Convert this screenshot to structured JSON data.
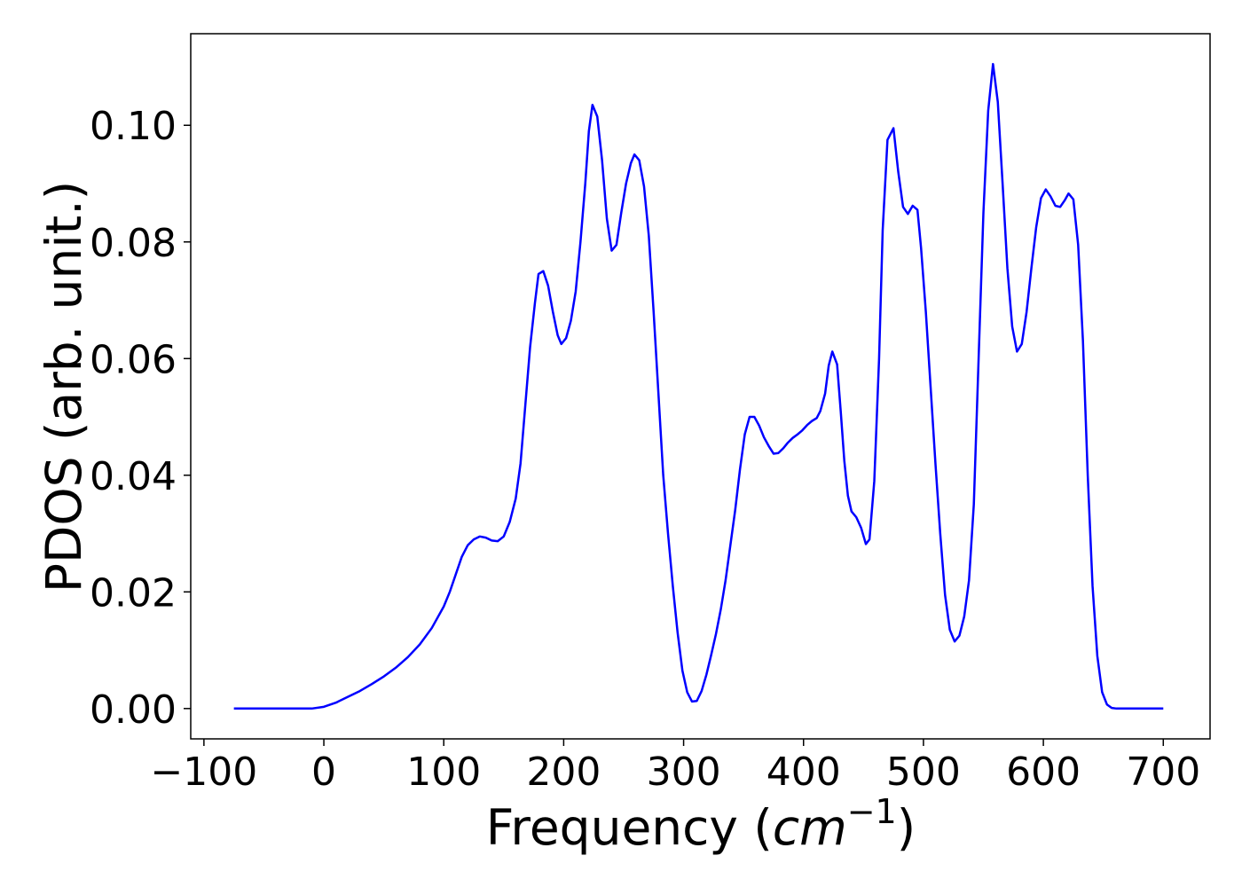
{
  "chart_data": {
    "type": "line",
    "xlabel": [
      "Frequency (",
      "cm",
      "−1",
      ")"
    ],
    "ylabel": "PDOS (arb. unit.)",
    "xlim": [
      -111,
      739
    ],
    "ylim": [
      -0.0052,
      0.1157
    ],
    "xticks": [
      {
        "value": -100,
        "label": "−100"
      },
      0,
      100,
      200,
      300,
      400,
      500,
      600,
      700
    ],
    "yticks": [
      {
        "value": 0,
        "label": "0.00"
      },
      {
        "value": 0.02,
        "label": "0.02"
      },
      {
        "value": 0.04,
        "label": "0.04"
      },
      {
        "value": 0.06,
        "label": "0.06"
      },
      {
        "value": 0.08,
        "label": "0.08"
      },
      {
        "value": 0.1,
        "label": "0.10"
      }
    ],
    "grid": false,
    "x": [
      -75,
      -50,
      -25,
      -10,
      0,
      10,
      20,
      30,
      40,
      50,
      60,
      70,
      80,
      90,
      100,
      105,
      110,
      115,
      120,
      125,
      130,
      135,
      140,
      145,
      150,
      155,
      160,
      164,
      168,
      172,
      176,
      179,
      183,
      187,
      191,
      195,
      198,
      202,
      206,
      210,
      214,
      218,
      221,
      224,
      228,
      232,
      236,
      240,
      244,
      248,
      252,
      256,
      259,
      263,
      267,
      271,
      275,
      279,
      283,
      287,
      291,
      295,
      299,
      303,
      307,
      311,
      315,
      319,
      323,
      327,
      331,
      335,
      339,
      343,
      347,
      351,
      355,
      359,
      363,
      367,
      371,
      375,
      379,
      383,
      387,
      391,
      395,
      399,
      403,
      407,
      411,
      414,
      418,
      421,
      424,
      428,
      431,
      434,
      437,
      440,
      444,
      448,
      452,
      455,
      459,
      463,
      466,
      470,
      475,
      479,
      483,
      487,
      491,
      495,
      498,
      502,
      506,
      510,
      514,
      518,
      522,
      526,
      530,
      534,
      538,
      542,
      546,
      550,
      554,
      558,
      562,
      566,
      570,
      574,
      578,
      582,
      586,
      590,
      594,
      598,
      602,
      606,
      610,
      614,
      618,
      621,
      625,
      629,
      633,
      637,
      641,
      645,
      649,
      653,
      657,
      661,
      700
    ],
    "series": [
      {
        "color": "#0000ff",
        "values": [
          0,
          0,
          0,
          0,
          0.0003,
          0.001,
          0.002,
          0.003,
          0.0042,
          0.0055,
          0.007,
          0.0088,
          0.011,
          0.0138,
          0.0175,
          0.02,
          0.023,
          0.026,
          0.028,
          0.029,
          0.0295,
          0.0293,
          0.0288,
          0.0287,
          0.0295,
          0.032,
          0.036,
          0.042,
          0.052,
          0.062,
          0.0695,
          0.0745,
          0.075,
          0.0725,
          0.068,
          0.064,
          0.0625,
          0.0635,
          0.0665,
          0.0715,
          0.08,
          0.09,
          0.099,
          0.1035,
          0.1015,
          0.094,
          0.084,
          0.0785,
          0.0795,
          0.085,
          0.09,
          0.0935,
          0.095,
          0.094,
          0.0895,
          0.081,
          0.068,
          0.054,
          0.04,
          0.03,
          0.021,
          0.013,
          0.0065,
          0.0028,
          0.0012,
          0.0013,
          0.003,
          0.0058,
          0.0092,
          0.0128,
          0.017,
          0.022,
          0.028,
          0.034,
          0.041,
          0.047,
          0.05,
          0.05,
          0.0485,
          0.0465,
          0.045,
          0.0437,
          0.0438,
          0.0446,
          0.0456,
          0.0464,
          0.047,
          0.0477,
          0.0486,
          0.0493,
          0.0498,
          0.051,
          0.054,
          0.0588,
          0.0612,
          0.059,
          0.051,
          0.0425,
          0.0365,
          0.0338,
          0.0328,
          0.031,
          0.0282,
          0.029,
          0.039,
          0.06,
          0.082,
          0.0975,
          0.0995,
          0.092,
          0.086,
          0.0848,
          0.0862,
          0.0855,
          0.079,
          0.068,
          0.055,
          0.042,
          0.03,
          0.0195,
          0.0135,
          0.0115,
          0.0125,
          0.0158,
          0.022,
          0.035,
          0.06,
          0.085,
          0.1025,
          0.1105,
          0.104,
          0.09,
          0.0755,
          0.0655,
          0.0612,
          0.0625,
          0.068,
          0.0755,
          0.0825,
          0.0875,
          0.089,
          0.0878,
          0.0862,
          0.086,
          0.0872,
          0.0883,
          0.0873,
          0.0795,
          0.063,
          0.04,
          0.021,
          0.009,
          0.0028,
          0.0007,
          0.0001,
          0,
          0
        ]
      }
    ]
  }
}
